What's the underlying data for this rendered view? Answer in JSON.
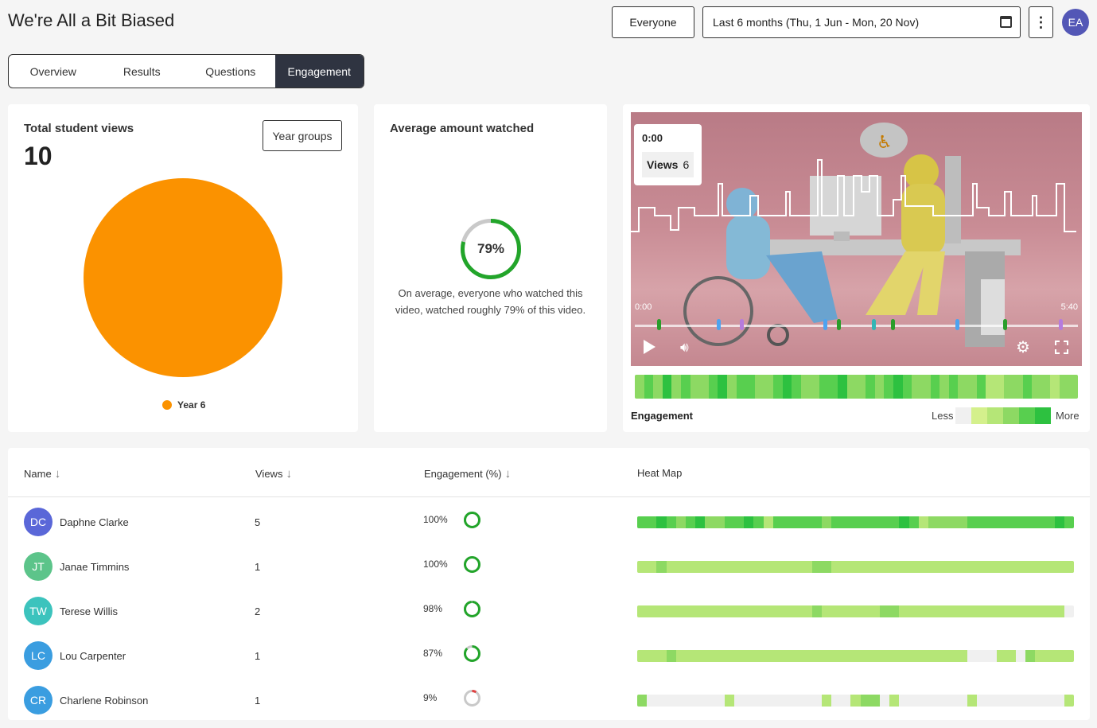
{
  "header": {
    "title": "We're All a Bit Biased",
    "audience_label": "Everyone",
    "date_range_label": "Last 6 months (Thu, 1 Jun - Mon, 20 Nov)",
    "more_label": "⋮",
    "user_initials": "EA"
  },
  "tabs": [
    {
      "label": "Overview",
      "active": false
    },
    {
      "label": "Results",
      "active": false
    },
    {
      "label": "Questions",
      "active": false
    },
    {
      "label": "Engagement",
      "active": true
    }
  ],
  "views_card": {
    "title": "Total student views",
    "total": "10",
    "group_button": "Year groups",
    "chart_data": {
      "type": "pie",
      "categories": [
        "Year 6"
      ],
      "values": [
        10
      ],
      "colors": [
        "#fb9200"
      ]
    }
  },
  "watched_card": {
    "title": "Average amount watched",
    "percent_label": "79%",
    "percent_value": 79,
    "description": "On average, everyone who watched this video, watched roughly 79% of this video."
  },
  "video_card": {
    "tooltip_time": "0:00",
    "tooltip_views_label": "Views",
    "tooltip_views_value": "6",
    "time_start": "0:00",
    "time_end": "5:40",
    "engagement_label": "Engagement",
    "less_label": "Less",
    "more_label": "More",
    "scale_colors": [
      "#f0f0f0",
      "#d4f08c",
      "#b5e677",
      "#8dd963",
      "#58cf4f",
      "#2dc140"
    ],
    "marker_colors": [
      "#2a9d2a",
      "#4da3f0",
      "#b57bde",
      "#33b5b5"
    ]
  },
  "table": {
    "headers": {
      "name": "Name",
      "views": "Views",
      "engagement": "Engagement (%)",
      "heatmap": "Heat Map"
    },
    "rows": [
      {
        "initials": "DC",
        "name": "Daphne Clarke",
        "views": "5",
        "engagement": "100%",
        "value": 100,
        "avatar_color": "#5a67d8"
      },
      {
        "initials": "JT",
        "name": "Janae Timmins",
        "views": "1",
        "engagement": "100%",
        "value": 100,
        "avatar_color": "#5cc48a"
      },
      {
        "initials": "TW",
        "name": "Terese Willis",
        "views": "2",
        "engagement": "98%",
        "value": 98,
        "avatar_color": "#3cc3bd"
      },
      {
        "initials": "LC",
        "name": "Lou Carpenter",
        "views": "1",
        "engagement": "87%",
        "value": 87,
        "avatar_color": "#3a9de0"
      },
      {
        "initials": "CR",
        "name": "Charlene Robinson",
        "views": "1",
        "engagement": "9%",
        "value": 9,
        "avatar_color": "#3a9de0"
      }
    ]
  },
  "colors": {
    "accent": "#2f3441",
    "ring_green": "#22a52a",
    "ring_red": "#e04040",
    "ring_track": "#c9c9c9"
  }
}
